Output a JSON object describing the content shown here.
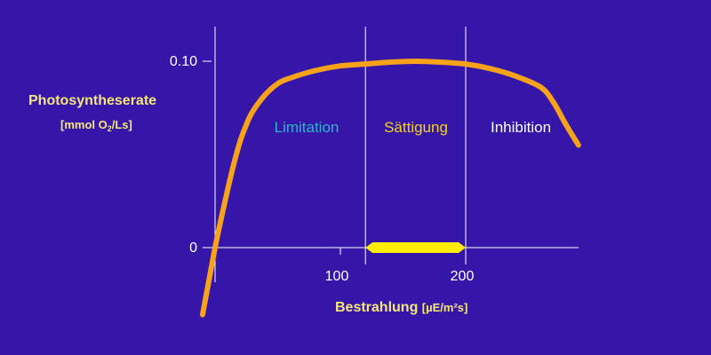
{
  "chart_data": {
    "type": "line",
    "title": "",
    "ylabel": {
      "title": "Photosyntheserate",
      "unit_prefix": "[mmol O",
      "unit_sub": "2",
      "unit_suffix": "/Ls]"
    },
    "xlabel": {
      "title": "Bestrahlung",
      "unit": "[µE/m²s]"
    },
    "x_ticks": [
      {
        "value": 100,
        "label": "100"
      },
      {
        "value": 200,
        "label": "200"
      }
    ],
    "y_ticks": [
      {
        "value": 0,
        "label": "0"
      },
      {
        "value": 0.1,
        "label": "0.10"
      }
    ],
    "xlim": [
      -10,
      290
    ],
    "ylim": [
      -0.04,
      0.12
    ],
    "series": [
      {
        "color": "#f7a21b",
        "points": [
          [
            -10,
            -0.036
          ],
          [
            -5,
            -0.018
          ],
          [
            0,
            0.0
          ],
          [
            5,
            0.016
          ],
          [
            10,
            0.031
          ],
          [
            15,
            0.045
          ],
          [
            20,
            0.057
          ],
          [
            25,
            0.066
          ],
          [
            30,
            0.073
          ],
          [
            40,
            0.082
          ],
          [
            50,
            0.088
          ],
          [
            60,
            0.091
          ],
          [
            80,
            0.095
          ],
          [
            100,
            0.0975
          ],
          [
            120,
            0.0985
          ],
          [
            140,
            0.0995
          ],
          [
            160,
            0.1
          ],
          [
            180,
            0.0995
          ],
          [
            200,
            0.0985
          ],
          [
            220,
            0.096
          ],
          [
            240,
            0.092
          ],
          [
            260,
            0.086
          ],
          [
            270,
            0.078
          ],
          [
            280,
            0.066
          ],
          [
            290,
            0.055
          ]
        ]
      }
    ],
    "regions": [
      {
        "label": "Limitation",
        "x_from": 0,
        "x_to": 120,
        "color": "#2ab8c8"
      },
      {
        "label": "Sättigung",
        "x_from": 120,
        "x_to": 200,
        "color": "#f5d21a"
      },
      {
        "label": "Inhibition",
        "x_from": 200,
        "x_to": 290,
        "color": "#ffffff"
      }
    ],
    "saturation_range": {
      "x_from": 120,
      "x_to": 200,
      "color": "#ffee00"
    },
    "grid": false
  }
}
